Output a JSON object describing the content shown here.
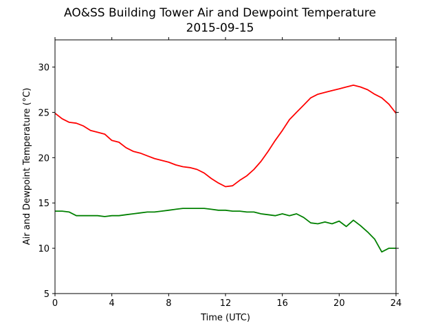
{
  "chart_data": {
    "type": "line",
    "title": "AO&SS Building Tower Air and Dewpoint Temperature",
    "subtitle": "2015-09-15",
    "xlabel": "Time (UTC)",
    "ylabel": "Air and Dewpoint Temperature (°C)",
    "xlim": [
      0,
      24
    ],
    "ylim": [
      5,
      33
    ],
    "xticks": [
      0,
      4,
      8,
      12,
      16,
      20,
      24
    ],
    "yticks": [
      5,
      10,
      15,
      20,
      25,
      30
    ],
    "grid": false,
    "legend": "none",
    "series": [
      {
        "color": "#ff0000",
        "x": [
          0,
          0.5,
          1,
          1.5,
          2,
          2.5,
          3,
          3.5,
          4,
          4.5,
          5,
          5.5,
          6,
          6.5,
          7,
          7.5,
          8,
          8.5,
          9,
          9.5,
          10,
          10.5,
          11,
          11.5,
          12,
          12.5,
          13,
          13.5,
          14,
          14.5,
          15,
          15.5,
          16,
          16.5,
          17,
          17.5,
          18,
          18.5,
          19,
          19.5,
          20,
          20.5,
          21,
          21.5,
          22,
          22.5,
          23,
          23.5,
          24
        ],
        "y": [
          24.9,
          24.3,
          23.9,
          23.8,
          23.5,
          23.0,
          22.8,
          22.6,
          21.9,
          21.7,
          21.1,
          20.7,
          20.5,
          20.2,
          19.9,
          19.7,
          19.5,
          19.2,
          19.0,
          18.9,
          18.7,
          18.3,
          17.7,
          17.2,
          16.8,
          16.9,
          17.5,
          18.0,
          18.7,
          19.6,
          20.7,
          21.9,
          23.0,
          24.2,
          25.0,
          25.8,
          26.6,
          27.0,
          27.2,
          27.4,
          27.6,
          27.8,
          28.0,
          27.8,
          27.5,
          27.0,
          26.6,
          25.9,
          24.9
        ]
      },
      {
        "color": "#008000",
        "x": [
          0,
          0.5,
          1,
          1.5,
          2,
          2.5,
          3,
          3.5,
          4,
          4.5,
          5,
          5.5,
          6,
          6.5,
          7,
          7.5,
          8,
          8.5,
          9,
          9.5,
          10,
          10.5,
          11,
          11.5,
          12,
          12.5,
          13,
          13.5,
          14,
          14.5,
          15,
          15.5,
          16,
          16.5,
          17,
          17.5,
          18,
          18.5,
          19,
          19.5,
          20,
          20.5,
          21,
          21.5,
          22,
          22.5,
          23,
          23.5,
          24
        ],
        "y": [
          14.1,
          14.1,
          14.0,
          13.6,
          13.6,
          13.6,
          13.6,
          13.5,
          13.6,
          13.6,
          13.7,
          13.8,
          13.9,
          14.0,
          14.0,
          14.1,
          14.2,
          14.3,
          14.4,
          14.4,
          14.4,
          14.4,
          14.3,
          14.2,
          14.2,
          14.1,
          14.1,
          14.0,
          14.0,
          13.8,
          13.7,
          13.6,
          13.8,
          13.6,
          13.8,
          13.4,
          12.8,
          12.7,
          12.9,
          12.7,
          13.0,
          12.4,
          13.1,
          12.5,
          11.8,
          11.0,
          9.6,
          10.0,
          10.0
        ]
      }
    ]
  }
}
